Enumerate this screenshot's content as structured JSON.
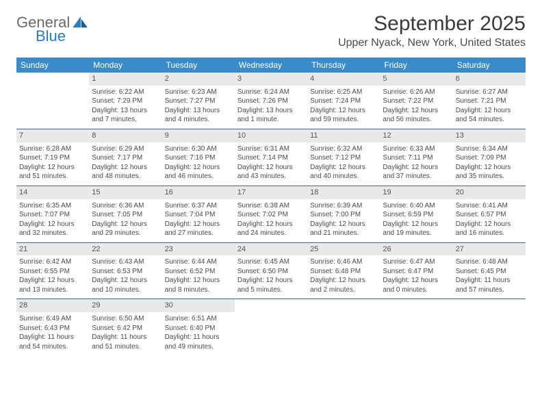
{
  "brand": {
    "line1": "General",
    "line2": "Blue"
  },
  "title": "September 2025",
  "location": "Upper Nyack, New York, United States",
  "colors": {
    "header_bg": "#3b8bc8",
    "header_text": "#ffffff",
    "row_border": "#3b6a95",
    "daynum_bg": "#e9e9e9",
    "body_text": "#4a4a4a",
    "brand_gray": "#6a6a6a",
    "brand_blue": "#2b7bbf"
  },
  "columns": [
    "Sunday",
    "Monday",
    "Tuesday",
    "Wednesday",
    "Thursday",
    "Friday",
    "Saturday"
  ],
  "weeks": [
    [
      null,
      {
        "n": "1",
        "sr": "Sunrise: 6:22 AM",
        "ss": "Sunset: 7:29 PM",
        "dl": "Daylight: 13 hours and 7 minutes."
      },
      {
        "n": "2",
        "sr": "Sunrise: 6:23 AM",
        "ss": "Sunset: 7:27 PM",
        "dl": "Daylight: 13 hours and 4 minutes."
      },
      {
        "n": "3",
        "sr": "Sunrise: 6:24 AM",
        "ss": "Sunset: 7:26 PM",
        "dl": "Daylight: 13 hours and 1 minute."
      },
      {
        "n": "4",
        "sr": "Sunrise: 6:25 AM",
        "ss": "Sunset: 7:24 PM",
        "dl": "Daylight: 12 hours and 59 minutes."
      },
      {
        "n": "5",
        "sr": "Sunrise: 6:26 AM",
        "ss": "Sunset: 7:22 PM",
        "dl": "Daylight: 12 hours and 56 minutes."
      },
      {
        "n": "6",
        "sr": "Sunrise: 6:27 AM",
        "ss": "Sunset: 7:21 PM",
        "dl": "Daylight: 12 hours and 54 minutes."
      }
    ],
    [
      {
        "n": "7",
        "sr": "Sunrise: 6:28 AM",
        "ss": "Sunset: 7:19 PM",
        "dl": "Daylight: 12 hours and 51 minutes."
      },
      {
        "n": "8",
        "sr": "Sunrise: 6:29 AM",
        "ss": "Sunset: 7:17 PM",
        "dl": "Daylight: 12 hours and 48 minutes."
      },
      {
        "n": "9",
        "sr": "Sunrise: 6:30 AM",
        "ss": "Sunset: 7:16 PM",
        "dl": "Daylight: 12 hours and 46 minutes."
      },
      {
        "n": "10",
        "sr": "Sunrise: 6:31 AM",
        "ss": "Sunset: 7:14 PM",
        "dl": "Daylight: 12 hours and 43 minutes."
      },
      {
        "n": "11",
        "sr": "Sunrise: 6:32 AM",
        "ss": "Sunset: 7:12 PM",
        "dl": "Daylight: 12 hours and 40 minutes."
      },
      {
        "n": "12",
        "sr": "Sunrise: 6:33 AM",
        "ss": "Sunset: 7:11 PM",
        "dl": "Daylight: 12 hours and 37 minutes."
      },
      {
        "n": "13",
        "sr": "Sunrise: 6:34 AM",
        "ss": "Sunset: 7:09 PM",
        "dl": "Daylight: 12 hours and 35 minutes."
      }
    ],
    [
      {
        "n": "14",
        "sr": "Sunrise: 6:35 AM",
        "ss": "Sunset: 7:07 PM",
        "dl": "Daylight: 12 hours and 32 minutes."
      },
      {
        "n": "15",
        "sr": "Sunrise: 6:36 AM",
        "ss": "Sunset: 7:05 PM",
        "dl": "Daylight: 12 hours and 29 minutes."
      },
      {
        "n": "16",
        "sr": "Sunrise: 6:37 AM",
        "ss": "Sunset: 7:04 PM",
        "dl": "Daylight: 12 hours and 27 minutes."
      },
      {
        "n": "17",
        "sr": "Sunrise: 6:38 AM",
        "ss": "Sunset: 7:02 PM",
        "dl": "Daylight: 12 hours and 24 minutes."
      },
      {
        "n": "18",
        "sr": "Sunrise: 6:39 AM",
        "ss": "Sunset: 7:00 PM",
        "dl": "Daylight: 12 hours and 21 minutes."
      },
      {
        "n": "19",
        "sr": "Sunrise: 6:40 AM",
        "ss": "Sunset: 6:59 PM",
        "dl": "Daylight: 12 hours and 19 minutes."
      },
      {
        "n": "20",
        "sr": "Sunrise: 6:41 AM",
        "ss": "Sunset: 6:57 PM",
        "dl": "Daylight: 12 hours and 16 minutes."
      }
    ],
    [
      {
        "n": "21",
        "sr": "Sunrise: 6:42 AM",
        "ss": "Sunset: 6:55 PM",
        "dl": "Daylight: 12 hours and 13 minutes."
      },
      {
        "n": "22",
        "sr": "Sunrise: 6:43 AM",
        "ss": "Sunset: 6:53 PM",
        "dl": "Daylight: 12 hours and 10 minutes."
      },
      {
        "n": "23",
        "sr": "Sunrise: 6:44 AM",
        "ss": "Sunset: 6:52 PM",
        "dl": "Daylight: 12 hours and 8 minutes."
      },
      {
        "n": "24",
        "sr": "Sunrise: 6:45 AM",
        "ss": "Sunset: 6:50 PM",
        "dl": "Daylight: 12 hours and 5 minutes."
      },
      {
        "n": "25",
        "sr": "Sunrise: 6:46 AM",
        "ss": "Sunset: 6:48 PM",
        "dl": "Daylight: 12 hours and 2 minutes."
      },
      {
        "n": "26",
        "sr": "Sunrise: 6:47 AM",
        "ss": "Sunset: 6:47 PM",
        "dl": "Daylight: 12 hours and 0 minutes."
      },
      {
        "n": "27",
        "sr": "Sunrise: 6:48 AM",
        "ss": "Sunset: 6:45 PM",
        "dl": "Daylight: 11 hours and 57 minutes."
      }
    ],
    [
      {
        "n": "28",
        "sr": "Sunrise: 6:49 AM",
        "ss": "Sunset: 6:43 PM",
        "dl": "Daylight: 11 hours and 54 minutes."
      },
      {
        "n": "29",
        "sr": "Sunrise: 6:50 AM",
        "ss": "Sunset: 6:42 PM",
        "dl": "Daylight: 11 hours and 51 minutes."
      },
      {
        "n": "30",
        "sr": "Sunrise: 6:51 AM",
        "ss": "Sunset: 6:40 PM",
        "dl": "Daylight: 11 hours and 49 minutes."
      },
      null,
      null,
      null,
      null
    ]
  ]
}
